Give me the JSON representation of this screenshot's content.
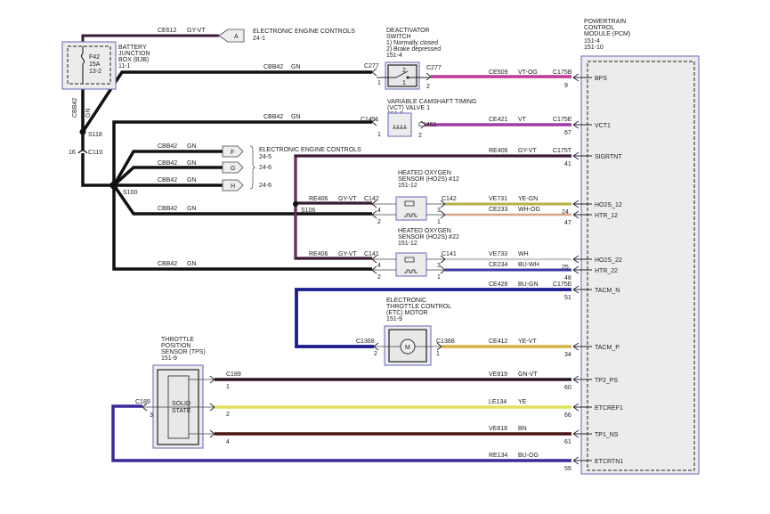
{
  "colors": {
    "GY-VT": "#3a1a34",
    "GN": "#111111",
    "VT-OG": "#c0399a",
    "VT": "#a43aa8",
    "YE-GN": "#b8b045",
    "WH-OG": "#d8a585",
    "WH": "#f4f4f4",
    "BU-WH": "#3a3aa8",
    "BU-GN": "#1c1c8c",
    "YE-VT": "#d6b048",
    "GN-VT": "#2a1424",
    "YE": "#e2e25a",
    "BN": "#4a1414",
    "BU-OG": "#3a2a9a"
  },
  "bjb": {
    "lines": [
      "BATTERY",
      "JUNCTION",
      "BOX (BJB)",
      "11-1"
    ],
    "fuse": [
      "F42",
      "15A",
      "13-2"
    ]
  },
  "eec_a": {
    "wire": "CE612",
    "color": "GY-VT",
    "connector": "A",
    "title": "ELECTRONIC ENGINE CONTROLS",
    "page": "24-1"
  },
  "feed": {
    "circuit": "CBB42",
    "color": "GN",
    "splices": [
      "S118",
      "S100",
      "S106"
    ],
    "c110": "C110",
    "c110_pin": "16"
  },
  "eec_fgh": {
    "title": "ELECTRONIC ENGINE CONTROLS",
    "connectors": [
      "F",
      "G",
      "H"
    ],
    "pages": [
      "24-5",
      "24-6",
      "24-6"
    ]
  },
  "deactivator": {
    "lines": [
      "DEACTIVATOR",
      "SWITCH",
      "1) Normally closed",
      "2) Brake depressed",
      "151-4"
    ],
    "connector": "C277",
    "pin_in": "1",
    "pin_out": "2",
    "sw_pin_top": "2",
    "sw_pin_bot": "1"
  },
  "vct": {
    "lines": [
      "VARIABLE CAMSHAFT TIMING",
      "(VCT) VALVE 1",
      "151-9"
    ],
    "connector": "C1451",
    "pin_in": "1",
    "pin_out": "2"
  },
  "ho2s12": {
    "lines": [
      "HEATED OXYGEN",
      "SENSOR (HO2S) #12",
      "151-12"
    ],
    "connector": "C142",
    "pins": [
      "4",
      "2",
      "3",
      "1"
    ]
  },
  "ho2s22": {
    "lines": [
      "HEATED OXYGEN",
      "SENSOR (HO2S) #22",
      "151-12"
    ],
    "connector": "C141",
    "pins": [
      "4",
      "2",
      "3",
      "1"
    ]
  },
  "etc": {
    "lines": [
      "ELECTRONIC",
      "THROTTLE CONTROL",
      "(ETC) MOTOR",
      "151-9"
    ],
    "connector": "C1368",
    "pins": [
      "2",
      "1"
    ],
    "motor": "M"
  },
  "tps": {
    "lines": [
      "THROTTLE",
      "POSITION",
      "SENSOR (TPS)",
      "151-9"
    ],
    "connector": "C189",
    "pins": [
      "1",
      "3",
      "2",
      "4"
    ],
    "inner": [
      "SOLID",
      "STATE"
    ]
  },
  "re406": {
    "circuit": "RE406",
    "color": "GY-VT"
  },
  "pcm": {
    "lines": [
      "POWERTRAIN",
      "CONTROL",
      "MODULE (PCM)",
      "151-4",
      "151-10"
    ],
    "pins": [
      {
        "name": "BPS",
        "pin": "9",
        "connector": "C175B",
        "circuit": "CE509",
        "color": "VT-OG"
      },
      {
        "name": "VCT1",
        "pin": "67",
        "connector": "C175E",
        "circuit": "CE421",
        "color": "VT"
      },
      {
        "name": "SIGRTNT",
        "pin": "41",
        "connector": "C175T",
        "circuit": "RE406",
        "color": "GY-VT"
      },
      {
        "name": "HO2S_12",
        "pin": "24",
        "circuit": "VE731",
        "color": "YE-GN"
      },
      {
        "name": "HTR_12",
        "pin": "47",
        "circuit": "CE233",
        "color": "WH-OG"
      },
      {
        "name": "HO2S_22",
        "pin": "25",
        "circuit": "VE733",
        "color": "WH"
      },
      {
        "name": "HTR_22",
        "pin": "48",
        "circuit": "CE234",
        "color": "BU-WH"
      },
      {
        "name": "TACM_N",
        "pin": "51",
        "connector": "C175E",
        "circuit": "CE426",
        "color": "BU-GN"
      },
      {
        "name": "TACM_P",
        "pin": "34",
        "circuit": "CE412",
        "color": "YE-VT"
      },
      {
        "name": "TP2_PS",
        "pin": "60",
        "circuit": "VE819",
        "color": "GN-VT"
      },
      {
        "name": "ETCREF1",
        "pin": "66",
        "circuit": "LE134",
        "color": "YE"
      },
      {
        "name": "TP1_NS",
        "pin": "61",
        "circuit": "VE818",
        "color": "BN"
      },
      {
        "name": "ETCRTN1",
        "pin": "59",
        "circuit": "RE134",
        "color": "BU-OG"
      }
    ]
  }
}
